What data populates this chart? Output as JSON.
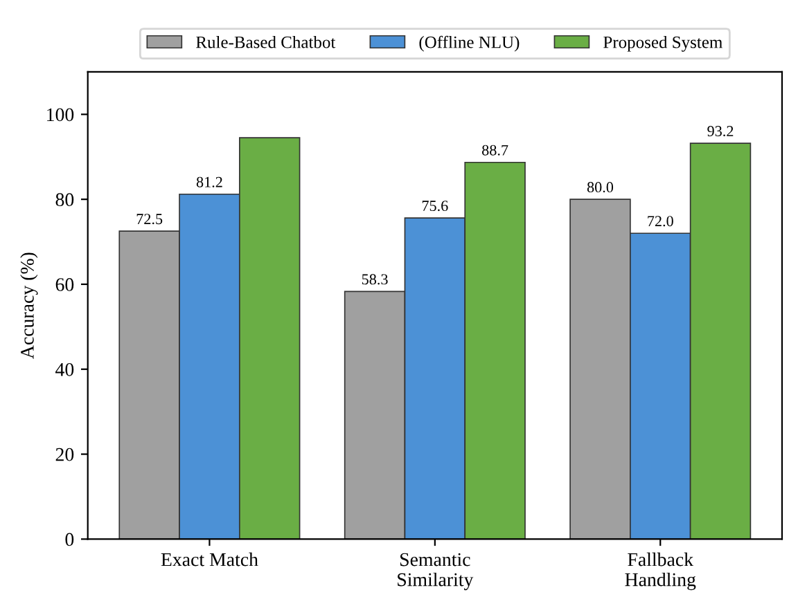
{
  "chart_data": {
    "type": "bar",
    "ylabel": "Accuracy (%)",
    "categories": [
      "Exact Match",
      "Semantic\nSimilarity",
      "Fallback\nHandling"
    ],
    "series": [
      {
        "name": "Rule-Based Chatbot",
        "color": "#a0a0a0",
        "values": [
          72.5,
          58.3,
          80.0
        ],
        "value_labels": [
          "72.5",
          "58.3",
          "80.0"
        ]
      },
      {
        "name": "(Offline NLU)",
        "color": "#4c91d6",
        "values": [
          81.2,
          75.6,
          72.0
        ],
        "value_labels": [
          "81.2",
          "75.6",
          "72.0"
        ]
      },
      {
        "name": "Proposed System",
        "color": "#6aae45",
        "values": [
          94.5,
          88.7,
          93.2
        ],
        "value_labels": [
          null,
          "88.7",
          "93.2"
        ]
      }
    ],
    "ylim": [
      0,
      110
    ],
    "yticks": [
      0,
      20,
      40,
      60,
      80,
      100
    ],
    "grid": false,
    "legend": "top"
  }
}
